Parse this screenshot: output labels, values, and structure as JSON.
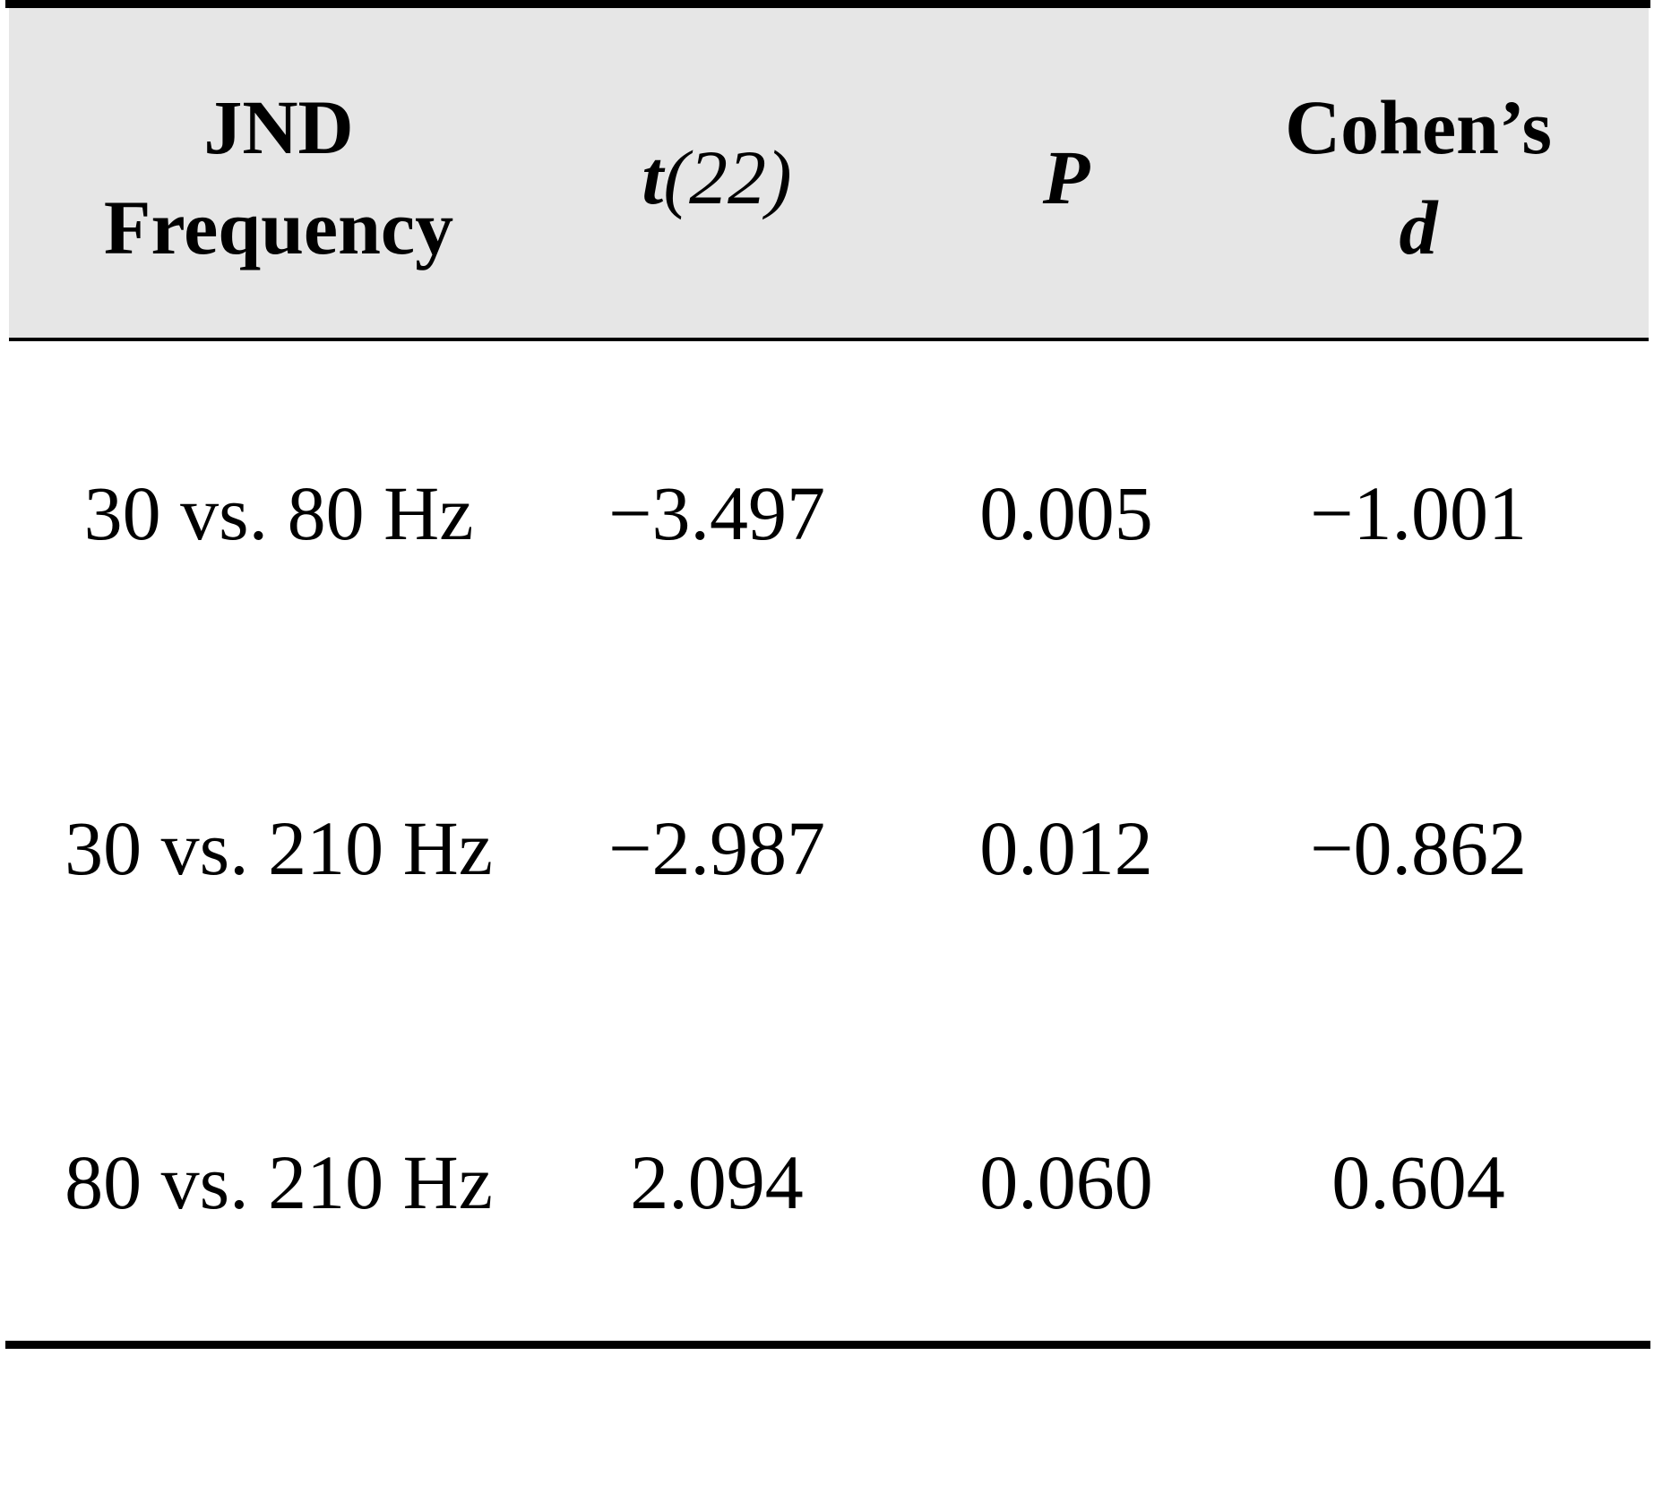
{
  "table": {
    "headers": {
      "col1_line1": "JND",
      "col1_line2": "Frequency",
      "col2_var": "t",
      "col2_rest": "(22)",
      "col3": "P",
      "col4_line1": "Cohen’s",
      "col4_line2": "d"
    },
    "rows": [
      {
        "comparison": "30 vs. 80 Hz",
        "t": "−3.497",
        "p": "0.005",
        "d": "−1.001"
      },
      {
        "comparison": "30 vs. 210 Hz",
        "t": "−2.987",
        "p": "0.012",
        "d": "−0.862"
      },
      {
        "comparison": "80 vs. 210 Hz",
        "t": "2.094",
        "p": "0.060",
        "d": "0.604"
      }
    ]
  }
}
